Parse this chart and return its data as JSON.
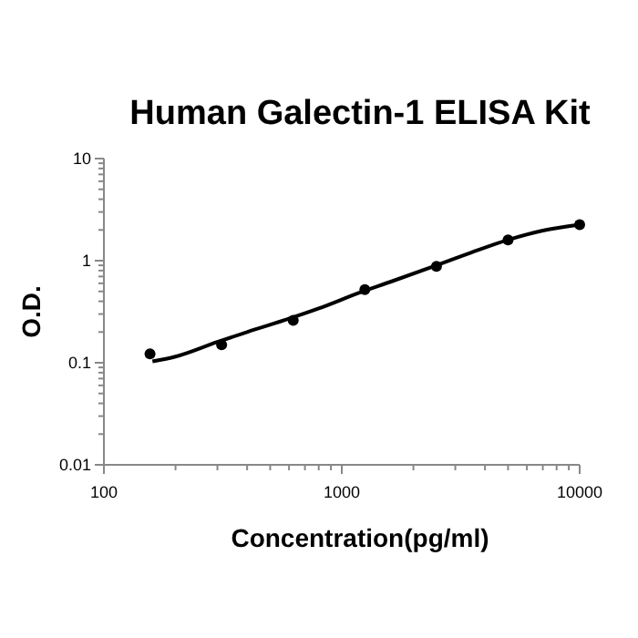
{
  "chart_data": {
    "type": "scatter",
    "title": "Human Galectin-1 ELISA Kit",
    "xlabel": "Concentration(pg/ml)",
    "ylabel": "O.D.",
    "log": "xy",
    "grid": false,
    "marker": "circle",
    "xlim": [
      100,
      10000
    ],
    "ylim": [
      0.01,
      10
    ],
    "xticks": [
      100,
      {
        "value": 200,
        "label": null
      },
      {
        "value": 300,
        "label": null
      },
      {
        "value": 400,
        "label": null
      },
      {
        "value": 500,
        "label": null
      },
      {
        "value": 600,
        "label": null
      },
      {
        "value": 700,
        "label": null
      },
      {
        "value": 800,
        "label": null
      },
      {
        "value": 900,
        "label": null
      },
      1000,
      {
        "value": 2000,
        "label": null
      },
      {
        "value": 3000,
        "label": null
      },
      {
        "value": 4000,
        "label": null
      },
      {
        "value": 5000,
        "label": null
      },
      {
        "value": 6000,
        "label": null
      },
      {
        "value": 7000,
        "label": null
      },
      {
        "value": 8000,
        "label": null
      },
      {
        "value": 9000,
        "label": null
      },
      10000
    ],
    "yticks": [
      0.01,
      {
        "value": 0.02,
        "label": null
      },
      {
        "value": 0.03,
        "label": null
      },
      {
        "value": 0.04,
        "label": null
      },
      {
        "value": 0.05,
        "label": null
      },
      {
        "value": 0.06,
        "label": null
      },
      {
        "value": 0.07,
        "label": null
      },
      {
        "value": 0.08,
        "label": null
      },
      {
        "value": 0.09,
        "label": null
      },
      0.1,
      {
        "value": 0.2,
        "label": null
      },
      {
        "value": 0.3,
        "label": null
      },
      {
        "value": 0.4,
        "label": null
      },
      {
        "value": 0.5,
        "label": null
      },
      {
        "value": 0.6,
        "label": null
      },
      {
        "value": 0.7,
        "label": null
      },
      {
        "value": 0.8,
        "label": null
      },
      {
        "value": 0.9,
        "label": null
      },
      1,
      {
        "value": 2,
        "label": null
      },
      {
        "value": 3,
        "label": null
      },
      {
        "value": 4,
        "label": null
      },
      {
        "value": 5,
        "label": null
      },
      {
        "value": 6,
        "label": null
      },
      {
        "value": 7,
        "label": null
      },
      {
        "value": 8,
        "label": null
      },
      {
        "value": 9,
        "label": null
      },
      10
    ],
    "series": [
      {
        "color": "#000000",
        "x": [
          156.25,
          312.5,
          625,
          1250,
          2500,
          5000,
          10000
        ],
        "values": [
          0.122,
          0.15,
          0.26,
          0.52,
          0.88,
          1.6,
          2.25
        ]
      },
      {
        "type": "line",
        "color": "#000000",
        "marker": "none",
        "line_style": "solid",
        "x": [
          160,
          200,
          300,
          400,
          600,
          800,
          1200,
          1600,
          2500,
          3500,
          5000,
          7000,
          10000
        ],
        "values": [
          0.103,
          0.115,
          0.16,
          0.2,
          0.27,
          0.34,
          0.49,
          0.62,
          0.9,
          1.2,
          1.6,
          1.97,
          2.25
        ]
      }
    ]
  }
}
